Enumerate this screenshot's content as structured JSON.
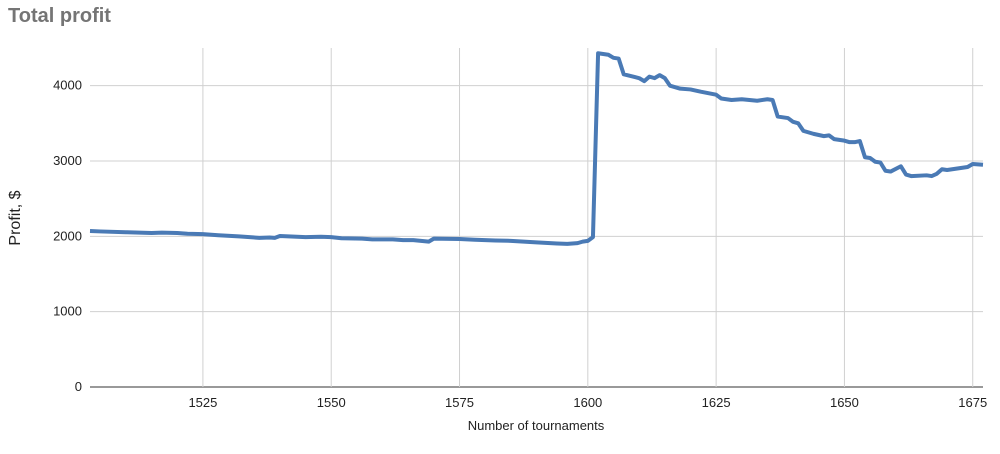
{
  "chart_data": {
    "type": "line",
    "title": "Total profit",
    "x_label": "Number of tournaments",
    "y_label": "Profit, $",
    "x": [
      1503,
      1505,
      1510,
      1515,
      1517,
      1520,
      1522,
      1525,
      1528,
      1532,
      1536,
      1538,
      1539,
      1540,
      1545,
      1548,
      1550,
      1552,
      1556,
      1558,
      1562,
      1564,
      1566,
      1569,
      1570,
      1575,
      1578,
      1582,
      1585,
      1590,
      1594,
      1596,
      1598,
      1599,
      1600,
      1601,
      1602,
      1604,
      1605,
      1606,
      1607,
      1610,
      1611,
      1612,
      1613,
      1614,
      1615,
      1616,
      1618,
      1620,
      1622,
      1625,
      1626,
      1628,
      1630,
      1633,
      1635,
      1636,
      1637,
      1639,
      1640,
      1641,
      1642,
      1644,
      1646,
      1647,
      1648,
      1650,
      1651,
      1652,
      1653,
      1654,
      1655,
      1656,
      1657,
      1658,
      1659,
      1661,
      1662,
      1663,
      1666,
      1667,
      1668,
      1669,
      1670,
      1672,
      1674,
      1675,
      1677
    ],
    "series": [
      {
        "name": "Total profit",
        "color": "#4a7ab5",
        "values": [
          2070,
          2065,
          2055,
          2045,
          2050,
          2045,
          2035,
          2030,
          2015,
          2000,
          1980,
          1985,
          1980,
          2005,
          1990,
          1995,
          1990,
          1975,
          1970,
          1960,
          1960,
          1950,
          1950,
          1930,
          1970,
          1965,
          1955,
          1945,
          1940,
          1920,
          1905,
          1900,
          1910,
          1930,
          1940,
          1990,
          4430,
          4410,
          4370,
          4360,
          4150,
          4100,
          4060,
          4120,
          4100,
          4140,
          4100,
          4000,
          3960,
          3950,
          3920,
          3880,
          3830,
          3810,
          3820,
          3800,
          3820,
          3810,
          3590,
          3570,
          3520,
          3500,
          3400,
          3360,
          3330,
          3340,
          3290,
          3270,
          3250,
          3250,
          3265,
          3050,
          3040,
          2990,
          2980,
          2870,
          2860,
          2930,
          2820,
          2800,
          2810,
          2800,
          2830,
          2890,
          2880,
          2900,
          2920,
          2960,
          2950
        ]
      }
    ],
    "xlim": [
      1503,
      1677
    ],
    "ylim": [
      0,
      4500
    ],
    "xticks": [
      1525,
      1550,
      1575,
      1600,
      1625,
      1650,
      1675
    ],
    "yticks": [
      0,
      1000,
      2000,
      3000,
      4000
    ],
    "grid": true
  }
}
